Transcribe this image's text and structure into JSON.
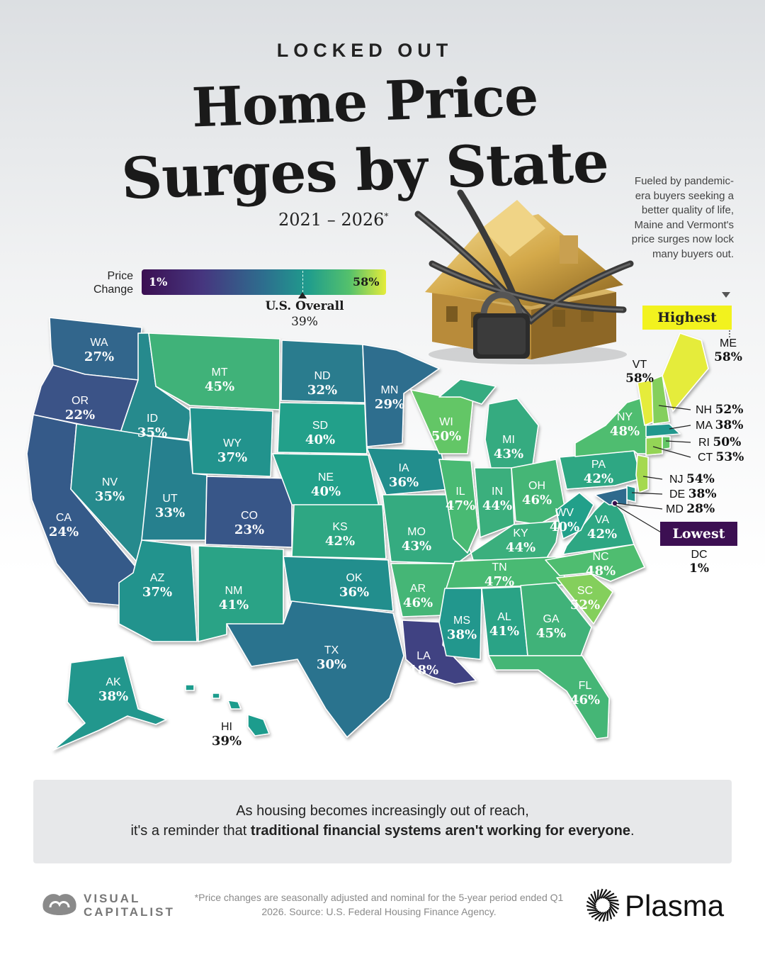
{
  "header": {
    "kicker": "LOCKED OUT",
    "title_line1": "Home Price",
    "title_line2": "Surges by State",
    "years": "2021 – 2026",
    "years_mark": "*"
  },
  "legend": {
    "label_line1": "Price",
    "label_line2": "Change",
    "min": "1%",
    "max": "58%",
    "overall_label": "U.S. Overall",
    "overall_value": "39%"
  },
  "note": "Fueled by pandemic-era buyers seeking a better quality of life, Maine and Vermont's price surges now lock many buyers out.",
  "tags": {
    "highest": "Highest",
    "lowest": "Lowest"
  },
  "colors": {
    "min": "#3b0f52",
    "mid": "#2d6e8e",
    "max": "#e5ec3a",
    "highlight": "#f2f21e",
    "lowest_tag": "#3c0f52"
  },
  "states": [
    {
      "code": "WA",
      "value": "27%"
    },
    {
      "code": "OR",
      "value": "22%"
    },
    {
      "code": "CA",
      "value": "24%"
    },
    {
      "code": "ID",
      "value": "35%"
    },
    {
      "code": "NV",
      "value": "35%"
    },
    {
      "code": "MT",
      "value": "45%"
    },
    {
      "code": "WY",
      "value": "37%"
    },
    {
      "code": "UT",
      "value": "33%"
    },
    {
      "code": "AZ",
      "value": "37%"
    },
    {
      "code": "CO",
      "value": "23%"
    },
    {
      "code": "NM",
      "value": "41%"
    },
    {
      "code": "ND",
      "value": "32%"
    },
    {
      "code": "SD",
      "value": "40%"
    },
    {
      "code": "NE",
      "value": "40%"
    },
    {
      "code": "KS",
      "value": "42%"
    },
    {
      "code": "OK",
      "value": "36%"
    },
    {
      "code": "TX",
      "value": "30%"
    },
    {
      "code": "MN",
      "value": "29%"
    },
    {
      "code": "IA",
      "value": "36%"
    },
    {
      "code": "MO",
      "value": "43%"
    },
    {
      "code": "AR",
      "value": "46%"
    },
    {
      "code": "LA",
      "value": "18%"
    },
    {
      "code": "WI",
      "value": "50%"
    },
    {
      "code": "IL",
      "value": "47%"
    },
    {
      "code": "MI",
      "value": "43%"
    },
    {
      "code": "IN",
      "value": "44%"
    },
    {
      "code": "OH",
      "value": "46%"
    },
    {
      "code": "KY",
      "value": "44%"
    },
    {
      "code": "TN",
      "value": "47%"
    },
    {
      "code": "MS",
      "value": "38%"
    },
    {
      "code": "AL",
      "value": "41%"
    },
    {
      "code": "GA",
      "value": "45%"
    },
    {
      "code": "FL",
      "value": "46%"
    },
    {
      "code": "SC",
      "value": "52%"
    },
    {
      "code": "NC",
      "value": "48%"
    },
    {
      "code": "VA",
      "value": "42%"
    },
    {
      "code": "WV",
      "value": "40%"
    },
    {
      "code": "PA",
      "value": "42%"
    },
    {
      "code": "NY",
      "value": "48%"
    },
    {
      "code": "AK",
      "value": "38%"
    },
    {
      "code": "HI",
      "value": "39%"
    }
  ],
  "callouts": [
    {
      "code": "VT",
      "value": "58%"
    },
    {
      "code": "ME",
      "value": "58%"
    },
    {
      "code": "NH",
      "value": "52%"
    },
    {
      "code": "MA",
      "value": "38%"
    },
    {
      "code": "RI",
      "value": "50%"
    },
    {
      "code": "CT",
      "value": "53%"
    },
    {
      "code": "NJ",
      "value": "54%"
    },
    {
      "code": "DE",
      "value": "38%"
    },
    {
      "code": "MD",
      "value": "28%"
    },
    {
      "code": "DC",
      "value": "1%"
    }
  ],
  "footer": {
    "line1": "As housing becomes increasingly out of reach,",
    "line2_pre": "it's a reminder that ",
    "line2_bold": "traditional financial systems aren't working for everyone",
    "line2_post": "."
  },
  "source": "*Price changes are seasonally adjusted and nominal for the 5-year period ended Q1 2026. Source: U.S. Federal Housing Finance Agency.",
  "brands": {
    "left_line1": "VISUAL",
    "left_line2": "CAPITALIST",
    "right": "Plasma"
  }
}
